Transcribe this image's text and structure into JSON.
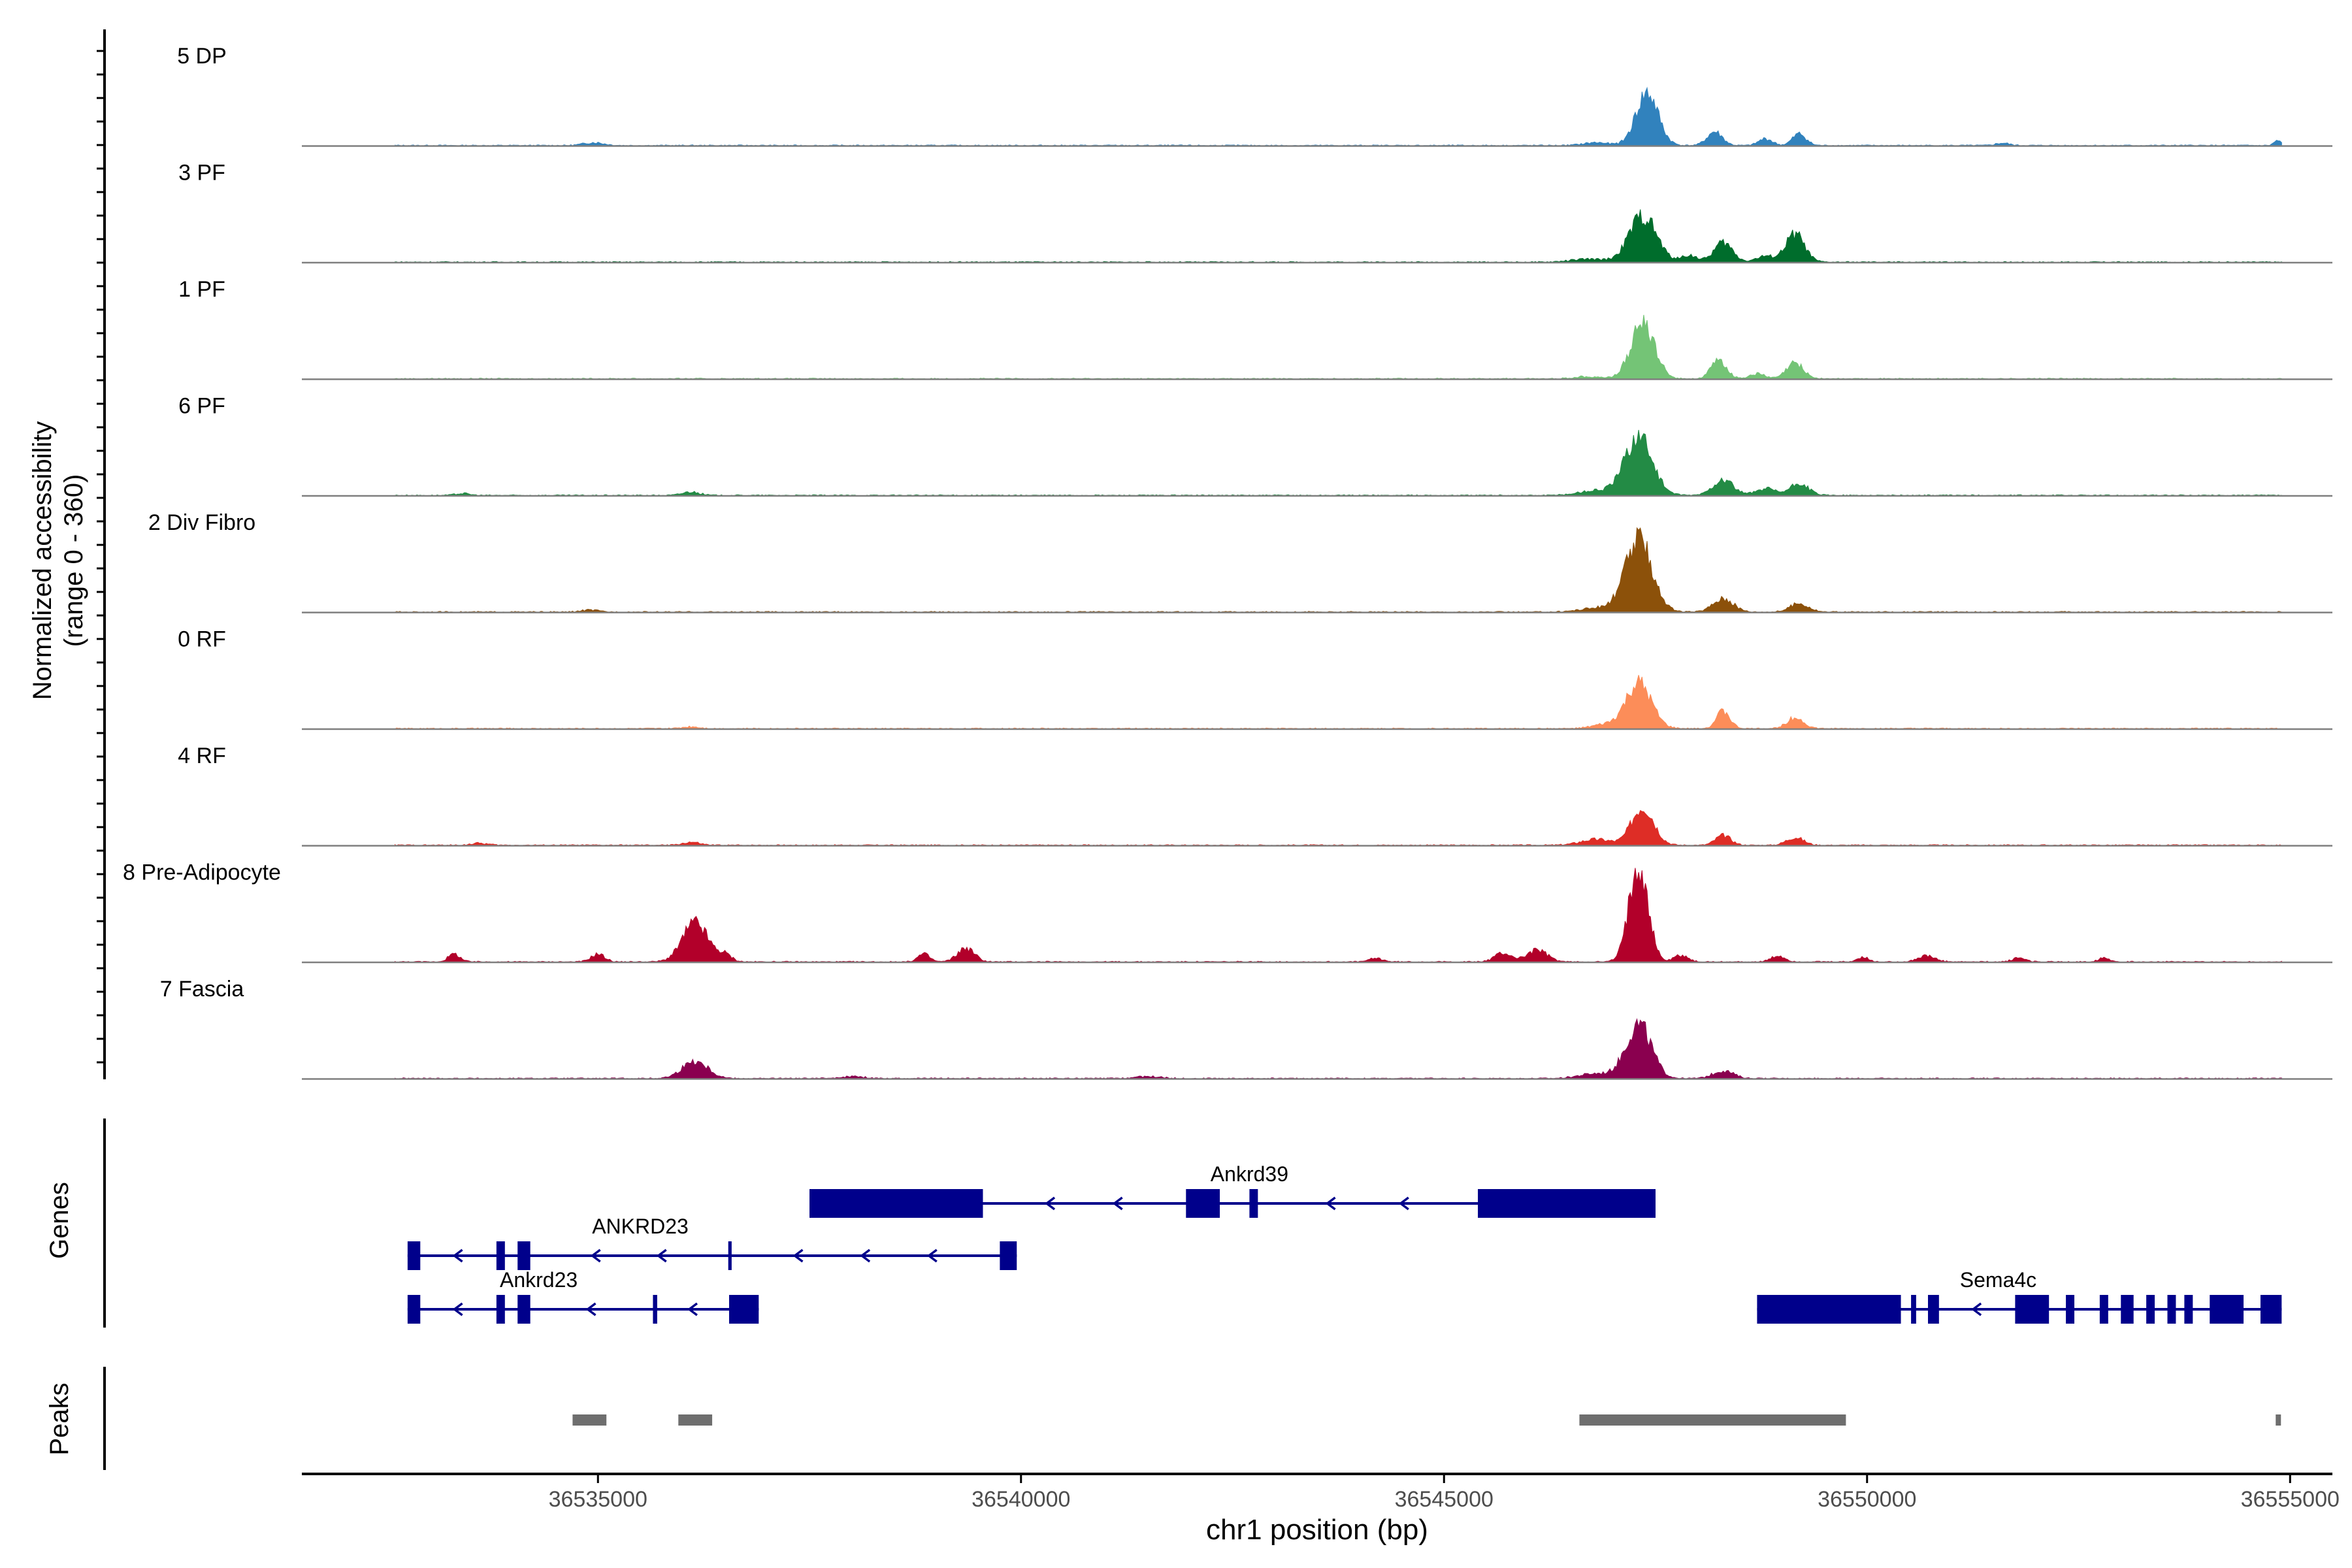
{
  "chart_data": {
    "type": "area",
    "title": "",
    "xlabel": "chr1 position (bp)",
    "ylabel_line1": "Normalized accessibility",
    "ylabel_line2": "(range 0 - 360)",
    "ylim": [
      0,
      360
    ],
    "xlim": [
      36531500,
      36555500
    ],
    "data_start": 36532600,
    "data_end": 36554900,
    "xticks": [
      36535000,
      36540000,
      36545000,
      36550000,
      36555000
    ],
    "xtick_labels": [
      "36535000",
      "36540000",
      "36545000",
      "36550000",
      "36555000"
    ],
    "tracks": [
      {
        "name": "5 DP",
        "color": "#3182bd",
        "peaks": [
          [
            36547400,
            270,
            130
          ],
          [
            36548200,
            70,
            90
          ],
          [
            36548800,
            35,
            80
          ],
          [
            36549200,
            60,
            80
          ],
          [
            36546800,
            15,
            150
          ],
          [
            36534950,
            15,
            120
          ],
          [
            36554850,
            25,
            40
          ],
          [
            36551600,
            12,
            80
          ]
        ]
      },
      {
        "name": "3 PF",
        "color": "#006d2c",
        "peaks": [
          [
            36547350,
            240,
            160
          ],
          [
            36548300,
            100,
            110
          ],
          [
            36547900,
            35,
            90
          ],
          [
            36549150,
            145,
            110
          ],
          [
            36548800,
            30,
            110
          ],
          [
            36546700,
            15,
            200
          ]
        ]
      },
      {
        "name": "1 PF",
        "color": "#74c476",
        "peaks": [
          [
            36547350,
            280,
            140
          ],
          [
            36548250,
            95,
            90
          ],
          [
            36549150,
            80,
            100
          ],
          [
            36548700,
            25,
            90
          ],
          [
            36546700,
            12,
            150
          ]
        ]
      },
      {
        "name": "6 PF",
        "color": "#238b45",
        "peaks": [
          [
            36547300,
            310,
            160
          ],
          [
            36548300,
            80,
            120
          ],
          [
            36549200,
            60,
            110
          ],
          [
            36548800,
            35,
            110
          ],
          [
            36546800,
            25,
            200
          ],
          [
            36536100,
            18,
            100
          ],
          [
            36533400,
            10,
            80
          ]
        ]
      },
      {
        "name": "2 Div Fibro",
        "color": "#8c510a",
        "peaks": [
          [
            36547300,
            370,
            160
          ],
          [
            36548300,
            70,
            120
          ],
          [
            36549200,
            45,
            110
          ],
          [
            36546800,
            20,
            200
          ],
          [
            36534900,
            10,
            100
          ]
        ]
      },
      {
        "name": "0 RF",
        "color": "#fc8d59",
        "peaks": [
          [
            36547300,
            230,
            150
          ],
          [
            36548300,
            90,
            80
          ],
          [
            36549150,
            55,
            100
          ],
          [
            36546900,
            20,
            150
          ],
          [
            36536100,
            10,
            100
          ]
        ]
      },
      {
        "name": "4 RF",
        "color": "#de2d26",
        "peaks": [
          [
            36547350,
            200,
            130
          ],
          [
            36548300,
            50,
            90
          ],
          [
            36549150,
            40,
            100
          ],
          [
            36546800,
            30,
            180
          ],
          [
            36536100,
            15,
            100
          ],
          [
            36533600,
            10,
            100
          ]
        ]
      },
      {
        "name": "8 Pre-Adipocyte",
        "color": "#b2002a",
        "peaks": [
          [
            36547300,
            520,
            110
          ],
          [
            36536150,
            200,
            150
          ],
          [
            36539350,
            70,
            100
          ],
          [
            36538850,
            40,
            70
          ],
          [
            36546100,
            60,
            120
          ],
          [
            36545700,
            45,
            100
          ],
          [
            36547800,
            35,
            80
          ],
          [
            36533300,
            40,
            70
          ],
          [
            36535000,
            40,
            80
          ],
          [
            36536500,
            35,
            80
          ],
          [
            36548950,
            30,
            80
          ],
          [
            36550700,
            30,
            100
          ],
          [
            36551800,
            20,
            80
          ],
          [
            36552800,
            25,
            60
          ],
          [
            36544200,
            18,
            80
          ],
          [
            36549950,
            25,
            60
          ]
        ]
      },
      {
        "name": "7 Fascia",
        "color": "#8a004f",
        "peaks": [
          [
            36547300,
            280,
            150
          ],
          [
            36536150,
            90,
            150
          ],
          [
            36548300,
            40,
            120
          ],
          [
            36546800,
            25,
            200
          ],
          [
            36538000,
            10,
            150
          ],
          [
            36541500,
            10,
            150
          ]
        ]
      }
    ],
    "genes": [
      {
        "name": "Ankrd39",
        "row": 0,
        "start": 36537500,
        "end": 36547500,
        "label_pos": 36542700,
        "exons": [
          [
            36537500,
            36539550
          ],
          [
            36541950,
            36542350
          ],
          [
            36542700,
            36542800
          ],
          [
            36545400,
            36547500
          ]
        ]
      },
      {
        "name": "ANKRD23",
        "row": 1,
        "start": 36532750,
        "end": 36539950,
        "label_pos": 36535500,
        "exons": [
          [
            36532750,
            36532900
          ],
          [
            36533800,
            36533900
          ],
          [
            36534050,
            36534200
          ],
          [
            36536540,
            36536580
          ],
          [
            36539750,
            36539950
          ]
        ]
      },
      {
        "name": "Ankrd23",
        "row": 2,
        "start": 36532750,
        "end": 36536900,
        "label_pos": 36534300,
        "exons": [
          [
            36532750,
            36532900
          ],
          [
            36533800,
            36533900
          ],
          [
            36534050,
            36534200
          ],
          [
            36535650,
            36535700
          ],
          [
            36536550,
            36536900
          ]
        ]
      },
      {
        "name": "Sema4c",
        "row": 2,
        "start": 36548700,
        "end": 36554900,
        "label_pos": 36551550,
        "exons": [
          [
            36548700,
            36550400
          ],
          [
            36550520,
            36550580
          ],
          [
            36550720,
            36550850
          ],
          [
            36551750,
            36552150
          ],
          [
            36552350,
            36552450
          ],
          [
            36552750,
            36552850
          ],
          [
            36553000,
            36553150
          ],
          [
            36553300,
            36553400
          ],
          [
            36553550,
            36553650
          ],
          [
            36553750,
            36553850
          ],
          [
            36554050,
            36554450
          ],
          [
            36554650,
            36554900
          ]
        ]
      }
    ],
    "peaks": [
      [
        36534700,
        36535100
      ],
      [
        36535950,
        36536350
      ],
      [
        36546600,
        36549750
      ],
      [
        36554830,
        36554880
      ]
    ],
    "panel_labels": [
      "Genes",
      "Peaks"
    ]
  }
}
